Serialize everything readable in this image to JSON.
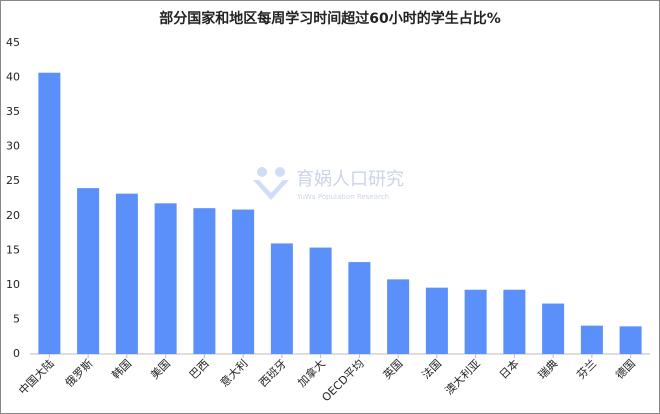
{
  "chart_data": {
    "type": "bar",
    "title": "部分国家和地区每周学习时间超过60小时的学生占比%",
    "categories": [
      "中国大陆",
      "俄罗斯",
      "韩国",
      "美国",
      "巴西",
      "意大利",
      "西班牙",
      "加拿大",
      "OECD平均",
      "英国",
      "法国",
      "澳大利亚",
      "日本",
      "瑞典",
      "芬兰",
      "德国"
    ],
    "values": [
      40.7,
      24.0,
      23.2,
      21.8,
      21.1,
      20.9,
      16.0,
      15.4,
      13.3,
      10.8,
      9.6,
      9.3,
      9.3,
      7.3,
      4.1,
      4.0
    ],
    "color": "#5b8ff9",
    "ylim": [
      0,
      45
    ],
    "yticks": [
      0,
      5,
      10,
      15,
      20,
      25,
      30,
      35,
      40,
      45
    ],
    "grid": false,
    "watermark": {
      "title": "育娲人口研究",
      "subtitle": "YuWa Population Research"
    }
  }
}
